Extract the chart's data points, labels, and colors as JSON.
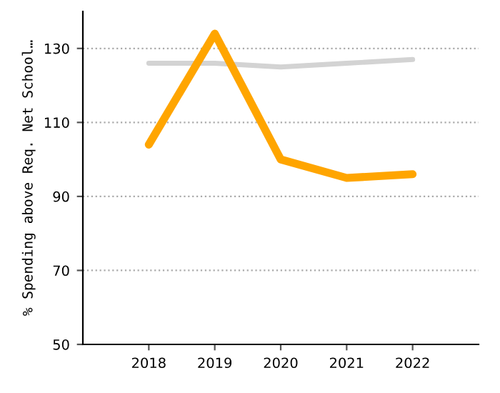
{
  "chart_data": {
    "type": "line",
    "ylabel": "% Spending above Req. Net School…",
    "categories": [
      "2018",
      "2019",
      "2020",
      "2021",
      "2022"
    ],
    "series": [
      {
        "color": "#d3d3d3",
        "values": [
          126,
          126,
          125,
          126,
          127
        ]
      },
      {
        "color": "#ffa500",
        "values": [
          104,
          134,
          100,
          95,
          96
        ]
      }
    ],
    "ylim": [
      50,
      140
    ],
    "yticks": [
      50,
      70,
      90,
      110,
      130
    ],
    "grid": "y",
    "marker": "none",
    "line_style": "solid"
  }
}
